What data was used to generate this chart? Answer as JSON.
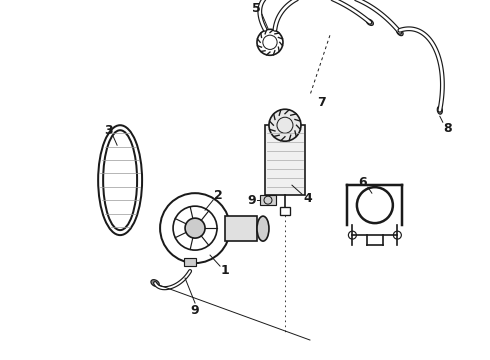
{
  "background_color": "#ffffff",
  "fig_width": 4.9,
  "fig_height": 3.6,
  "dpi": 100,
  "line_color": "#1a1a1a",
  "label_fontsize": 9,
  "label_fontweight": "bold"
}
